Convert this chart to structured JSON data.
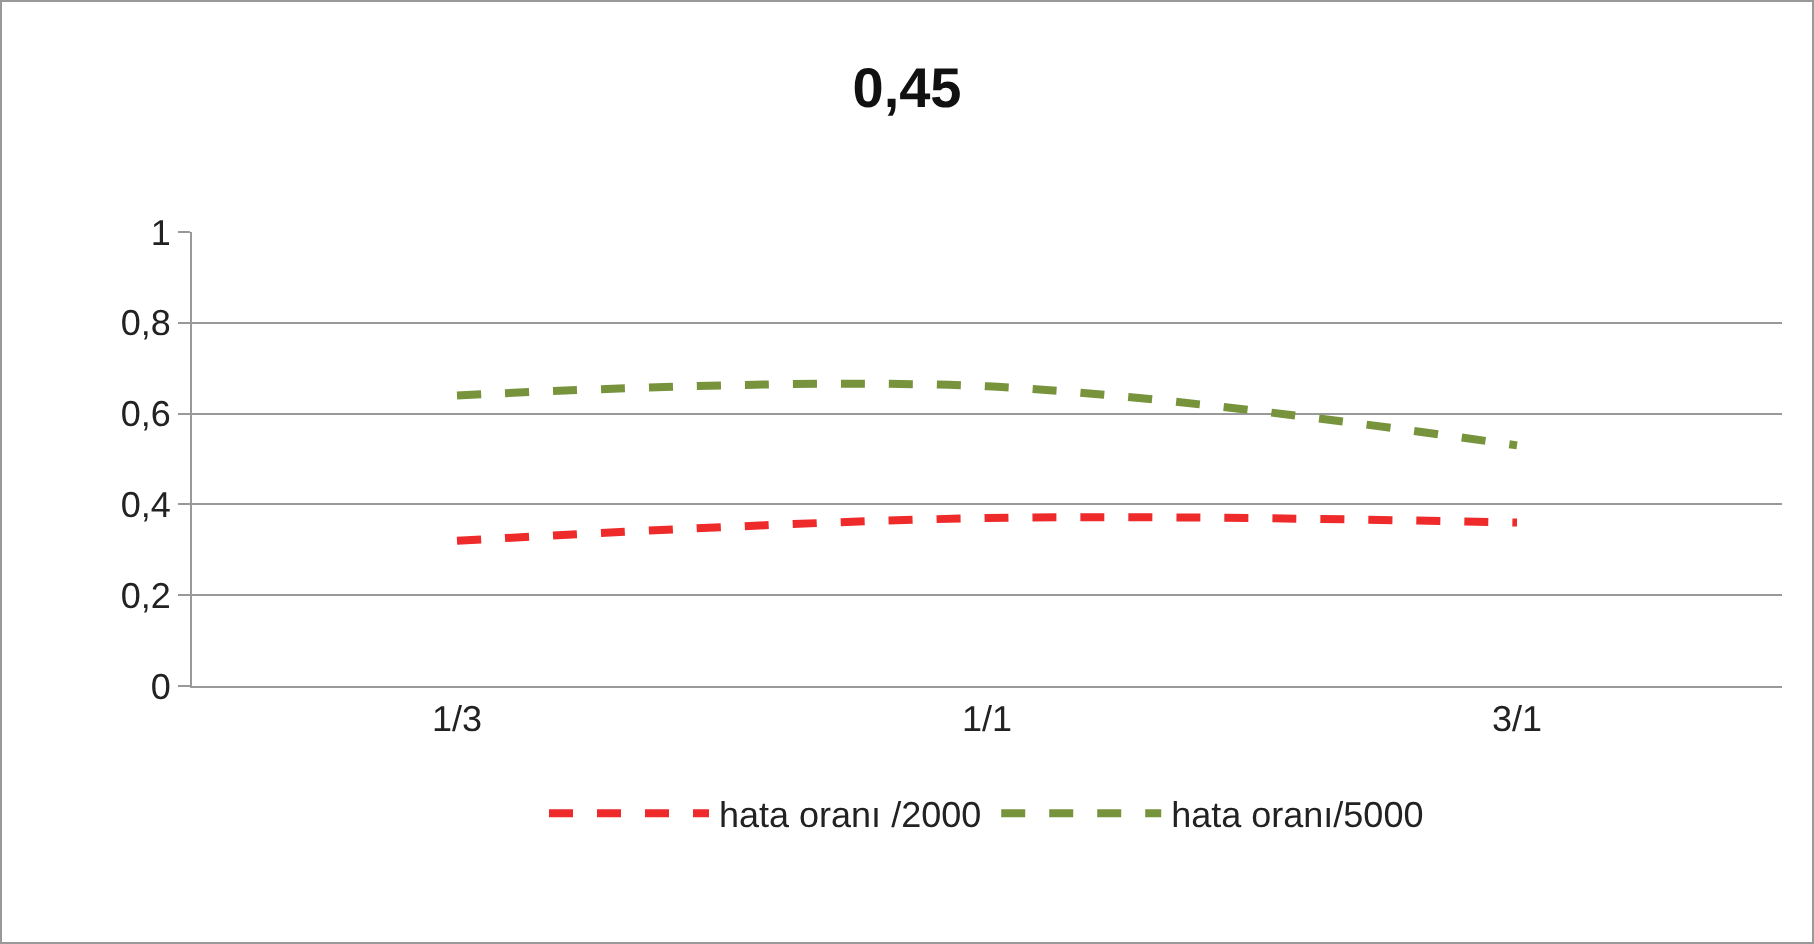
{
  "chart_data": {
    "type": "line",
    "title": "0,45",
    "categories": [
      "1/3",
      "1/1",
      "3/1"
    ],
    "series": [
      {
        "name": "hata oranı /2000",
        "color": "#ee2a2a",
        "values": [
          0.32,
          0.37,
          0.36
        ],
        "line_style": "dashed"
      },
      {
        "name": "hata oranı/5000",
        "color": "#77933c",
        "values": [
          0.64,
          0.66,
          0.53
        ],
        "line_style": "dashed"
      }
    ],
    "ylim": [
      0,
      1
    ],
    "yticks": [
      0,
      {
        "value": 0.2,
        "label": "0,2"
      },
      {
        "value": 0.4,
        "label": "0,4"
      },
      {
        "value": 0.6,
        "label": "0,6"
      },
      {
        "value": 0.8,
        "label": "0,8"
      },
      1
    ],
    "grid": "y",
    "legend": "bottom",
    "marker": "none"
  }
}
